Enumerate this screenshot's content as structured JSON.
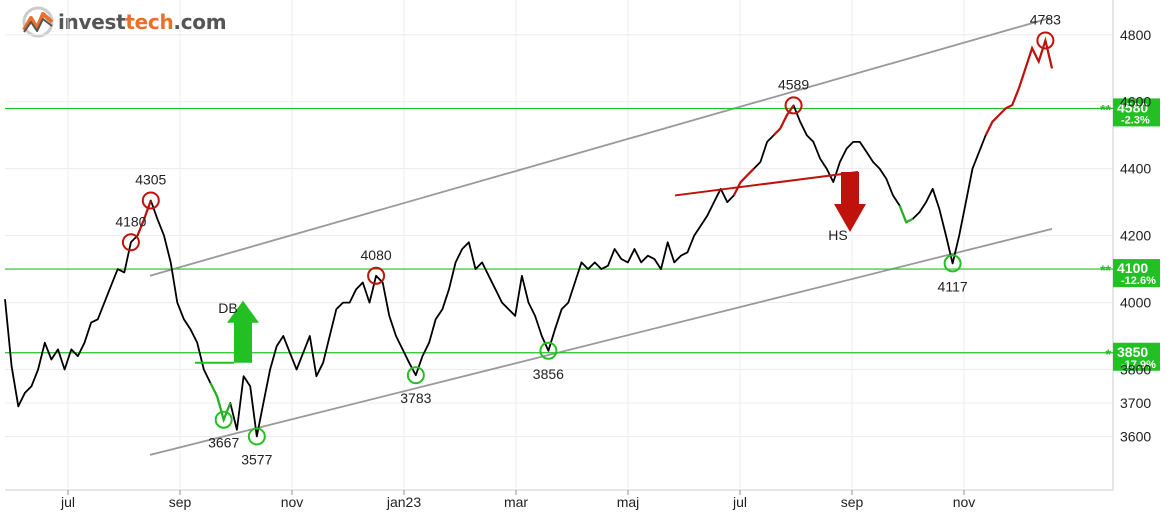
{
  "brand": {
    "name_part1": "invest",
    "name_part2": "tech",
    "name_part3": ".com",
    "accent_color": "#e8702a"
  },
  "colors": {
    "price": "#000000",
    "up_segment": "#c0120c",
    "down_segment": "#22b022",
    "channel": "#999999",
    "support_resistance": "#22c022",
    "grid": "#ececec"
  },
  "chart_data": {
    "type": "line",
    "title": "",
    "xlabel": "",
    "ylabel": "",
    "ylim": [
      3440,
      4880
    ],
    "x_tick_labels": [
      "jul",
      "sep",
      "nov",
      "jan23",
      "mar",
      "maj",
      "jul",
      "sep",
      "nov"
    ],
    "y_tick_labels": [
      "4800",
      "4600",
      "4400",
      "4200",
      "4000",
      "3800",
      "3700",
      "3600"
    ],
    "y_ticks": [
      4800,
      4600,
      4400,
      4200,
      4000,
      3800,
      3700,
      3600
    ],
    "series": [
      {
        "values": [
          4010,
          3810,
          3690,
          3730,
          3750,
          3800,
          3880,
          3830,
          3860,
          3800,
          3860,
          3840,
          3880,
          3940,
          3950,
          4000,
          4050,
          4100,
          4090,
          4180,
          4200,
          4250,
          4305,
          4250,
          4200,
          4120,
          4000,
          3950,
          3920,
          3880,
          3800,
          3760,
          3720,
          3650,
          3700,
          3620,
          3780,
          3750,
          3600,
          3700,
          3800,
          3870,
          3900,
          3850,
          3800,
          3850,
          3900,
          3780,
          3820,
          3900,
          3980,
          4000,
          4000,
          4040,
          4060,
          4000,
          4080,
          4060,
          3960,
          3900,
          3860,
          3820,
          3783,
          3840,
          3880,
          3950,
          3980,
          4040,
          4120,
          4160,
          4180,
          4100,
          4120,
          4080,
          4040,
          4000,
          3980,
          3960,
          4080,
          4000,
          3960,
          3900,
          3856,
          3920,
          3980,
          4000,
          4060,
          4120,
          4100,
          4120,
          4100,
          4110,
          4160,
          4130,
          4120,
          4160,
          4120,
          4140,
          4130,
          4100,
          4180,
          4120,
          4140,
          4150,
          4200,
          4230,
          4260,
          4300,
          4340,
          4300,
          4320,
          4360,
          4380,
          4400,
          4420,
          4480,
          4500,
          4520,
          4560,
          4589,
          4540,
          4500,
          4480,
          4430,
          4400,
          4360,
          4420,
          4460,
          4480,
          4480,
          4450,
          4420,
          4400,
          4370,
          4320,
          4290,
          4240,
          4250,
          4270,
          4300,
          4340,
          4280,
          4200,
          4117,
          4200,
          4300,
          4400,
          4450,
          4500,
          4540,
          4560,
          4580,
          4590,
          4640,
          4700,
          4760,
          4720,
          4783,
          4700
        ],
        "unit": "points"
      }
    ],
    "trend_channel": {
      "upper": [
        4080,
        4850
      ],
      "lower": [
        3545,
        4220
      ]
    },
    "horizontal_levels": [
      {
        "value": 4580,
        "label": "4580",
        "change": "-2.3%",
        "marker": "**"
      },
      {
        "value": 4100,
        "label": "4100",
        "change": "-12.6%",
        "marker": "**"
      },
      {
        "value": 3850,
        "label": "3850",
        "change": "-17.9%",
        "marker": "*"
      }
    ],
    "pivot_points": [
      {
        "label": "3667",
        "value": 3667,
        "kind": "low"
      },
      {
        "label": "4305",
        "value": 4305,
        "kind": "high"
      },
      {
        "label": "3577",
        "value": 3577,
        "kind": "low"
      },
      {
        "label": "4080",
        "value": 4080,
        "kind": "high"
      },
      {
        "label": "3783",
        "value": 3783,
        "kind": "low"
      },
      {
        "label": "4180",
        "value": 4180,
        "kind": "high"
      },
      {
        "label": "3856",
        "value": 3856,
        "kind": "low"
      },
      {
        "label": "4589",
        "value": 4589,
        "kind": "high"
      },
      {
        "label": "4117",
        "value": 4117,
        "kind": "low"
      },
      {
        "label": "4783",
        "value": 4783,
        "kind": "high"
      }
    ],
    "patterns": [
      {
        "label": "DB",
        "direction": "up",
        "value": 3820
      },
      {
        "label": "HS",
        "direction": "down",
        "value": 4390
      }
    ]
  }
}
